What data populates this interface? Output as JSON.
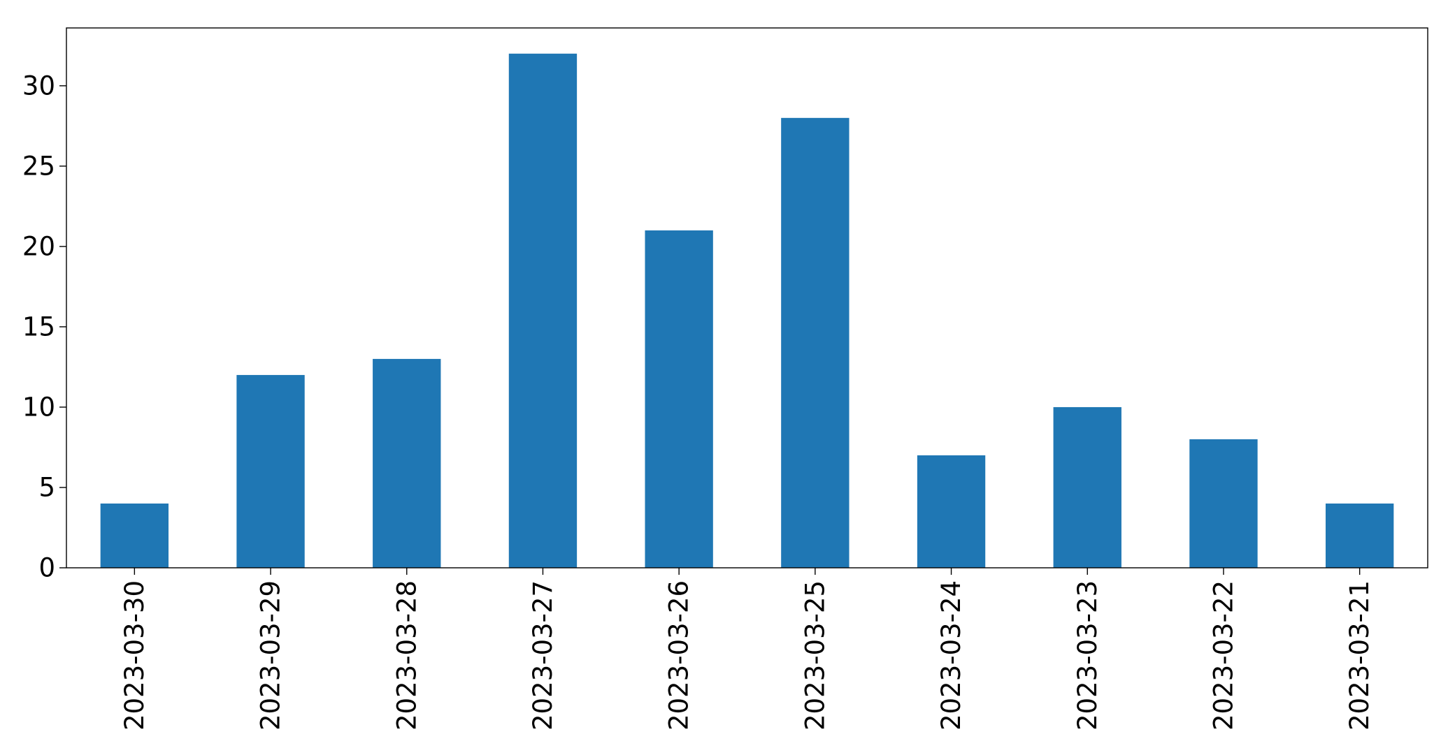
{
  "chart_data": {
    "type": "bar",
    "categories": [
      "2023-03-30",
      "2023-03-29",
      "2023-03-28",
      "2023-03-27",
      "2023-03-26",
      "2023-03-25",
      "2023-03-24",
      "2023-03-23",
      "2023-03-22",
      "2023-03-21"
    ],
    "values": [
      4,
      12,
      13,
      32,
      21,
      28,
      7,
      10,
      8,
      4
    ],
    "title": "",
    "xlabel": "",
    "ylabel": "",
    "ylim": [
      0,
      33.6
    ],
    "yticks": [
      0,
      5,
      10,
      15,
      20,
      25,
      30
    ],
    "bar_color": "#1f77b4",
    "grid": false,
    "legend": "none",
    "xtick_rotation": "vertical"
  }
}
